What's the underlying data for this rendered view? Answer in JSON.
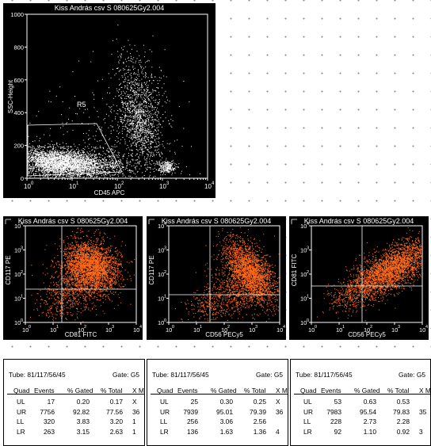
{
  "colors": {
    "background": "#ffffff",
    "panel": "#000000",
    "events_main": "#ffffff",
    "events_quadrant": "#ff6a1a",
    "gate_line": "#ffffff"
  },
  "main_plot": {
    "title": "Kiss András csv S 080625Gy2.004",
    "xlabel": "CD45 APC",
    "ylabel": "SSC-Height",
    "region_label": "R5",
    "xticks": [
      "10",
      "10",
      "10",
      "10",
      "10"
    ],
    "xtick_exps": [
      "0",
      "1",
      "2",
      "3",
      "4"
    ],
    "yticks": [
      "0",
      "200",
      "400",
      "600",
      "800",
      "1000"
    ]
  },
  "quad_plots": [
    {
      "title": "Kiss András csv S 080625Gy2.004",
      "xlabel": "CD81 FITC",
      "ylabel": "CD117 PE"
    },
    {
      "title": "Kiss András csv S 080625Gy2.004",
      "xlabel": "CD56 PECy5",
      "ylabel": "CD117 PE"
    },
    {
      "title": "Kiss András csv S 080625Gy2.004",
      "xlabel": "CD56 PECy5",
      "ylabel": "CD81 FITC"
    }
  ],
  "quad_axis": {
    "ticks": [
      "10",
      "10",
      "10",
      "10",
      "10"
    ],
    "exps": [
      "0",
      "1",
      "2",
      "3",
      "4"
    ]
  },
  "stats_header": {
    "quad": "Quad",
    "events": "Events",
    "gated": "% Gated",
    "total": "% Total",
    "xm": "X M"
  },
  "stats_tables": [
    {
      "tube": "Tube: 81/117/56/45",
      "gate": "Gate: G5",
      "rows": [
        {
          "quad": "UL",
          "events": "17",
          "gated": "0.20",
          "total": "0.17",
          "xm": "X"
        },
        {
          "quad": "UR",
          "events": "7756",
          "gated": "92.82",
          "total": "77.56",
          "xm": "36"
        },
        {
          "quad": "LL",
          "events": "320",
          "gated": "3.83",
          "total": "3.20",
          "xm": "1"
        },
        {
          "quad": "LR",
          "events": "263",
          "gated": "3.15",
          "total": "2.63",
          "xm": "1"
        }
      ]
    },
    {
      "tube": "Tube: 81/117/56/45",
      "gate": "Gate: G5",
      "rows": [
        {
          "quad": "UL",
          "events": "25",
          "gated": "0.30",
          "total": "0.25",
          "xm": "X"
        },
        {
          "quad": "UR",
          "events": "7939",
          "gated": "95.01",
          "total": "79.39",
          "xm": "36"
        },
        {
          "quad": "LL",
          "events": "256",
          "gated": "3.06",
          "total": "2.56",
          "xm": ""
        },
        {
          "quad": "LR",
          "events": "136",
          "gated": "1.63",
          "total": "1.36",
          "xm": "4"
        }
      ]
    },
    {
      "tube": "Tube: 81/117/56/45",
      "gate": "Gate: G5",
      "rows": [
        {
          "quad": "UL",
          "events": "53",
          "gated": "0.63",
          "total": "0.53",
          "xm": ""
        },
        {
          "quad": "UR",
          "events": "7983",
          "gated": "95.54",
          "total": "79.83",
          "xm": "35"
        },
        {
          "quad": "LL",
          "events": "228",
          "gated": "2.73",
          "total": "2.28",
          "xm": ""
        },
        {
          "quad": "LR",
          "events": "92",
          "gated": "1.10",
          "total": "0.92",
          "xm": "3"
        }
      ]
    }
  ]
}
